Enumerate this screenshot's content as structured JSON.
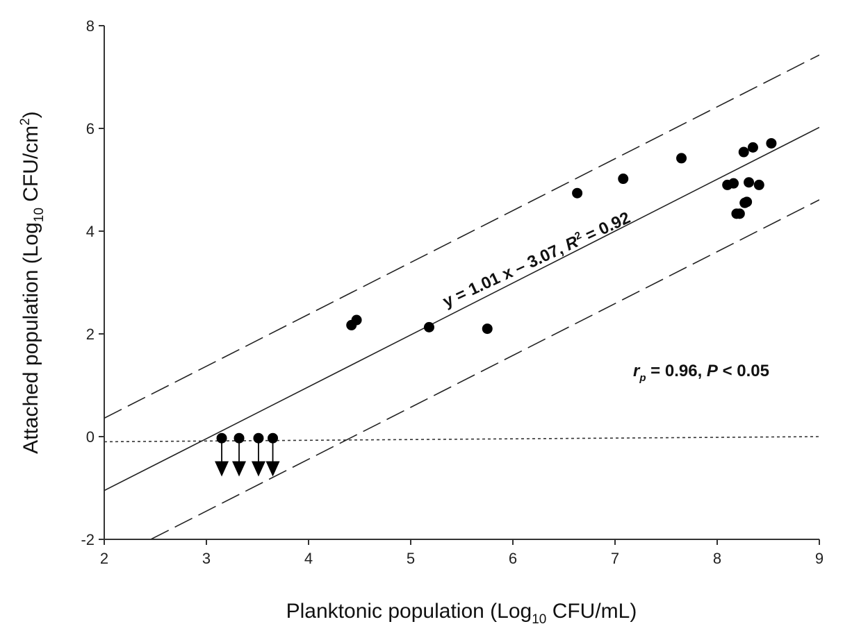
{
  "chart_data": {
    "type": "scatter",
    "xlabel": {
      "main": "Planktonic population (Log",
      "sub": "10",
      "tail": " CFU/mL)"
    },
    "ylabel": {
      "main": "Attached population (Log",
      "sub": "10",
      "mid": " CFU/cm",
      "sup": "2",
      "tail": ")"
    },
    "xlim": [
      2,
      9
    ],
    "ylim": [
      -2,
      8
    ],
    "xticks": [
      2,
      3,
      4,
      5,
      6,
      7,
      8,
      9
    ],
    "yticks": [
      -2,
      0,
      2,
      4,
      6,
      8
    ],
    "grid": false,
    "points": [
      {
        "x": 4.42,
        "y": 2.17
      },
      {
        "x": 4.47,
        "y": 2.27
      },
      {
        "x": 5.18,
        "y": 2.13
      },
      {
        "x": 5.75,
        "y": 2.1
      },
      {
        "x": 6.63,
        "y": 4.74
      },
      {
        "x": 7.08,
        "y": 5.02
      },
      {
        "x": 7.65,
        "y": 5.42
      },
      {
        "x": 8.1,
        "y": 4.9
      },
      {
        "x": 8.16,
        "y": 4.93
      },
      {
        "x": 8.19,
        "y": 4.34
      },
      {
        "x": 8.22,
        "y": 4.34
      },
      {
        "x": 8.26,
        "y": 5.54
      },
      {
        "x": 8.27,
        "y": 4.55
      },
      {
        "x": 8.29,
        "y": 4.57
      },
      {
        "x": 8.31,
        "y": 4.95
      },
      {
        "x": 8.35,
        "y": 5.63
      },
      {
        "x": 8.41,
        "y": 4.9
      },
      {
        "x": 8.53,
        "y": 5.71
      }
    ],
    "censored_points": [
      {
        "x": 3.15,
        "y": -0.03,
        "arrow_to": -0.75
      },
      {
        "x": 3.32,
        "y": -0.03,
        "arrow_to": -0.75
      },
      {
        "x": 3.51,
        "y": -0.03,
        "arrow_to": -0.75
      },
      {
        "x": 3.65,
        "y": -0.03,
        "arrow_to": -0.75
      }
    ],
    "regression": {
      "slope": 1.01,
      "intercept": -3.07
    },
    "prediction_band": {
      "offset": 1.41
    },
    "detection_limit": {
      "y_start": -0.1,
      "y_end": 0.0
    },
    "annotations": {
      "equation": {
        "lhs": "y = 1.01 x – 3.07, ",
        "r": "R",
        "sup": "2",
        "rhs": " = 0.92"
      },
      "stats": {
        "r": "r",
        "sub": "p",
        "mid": " = 0.96, ",
        "p": "P",
        "tail": " < 0.05"
      }
    }
  }
}
